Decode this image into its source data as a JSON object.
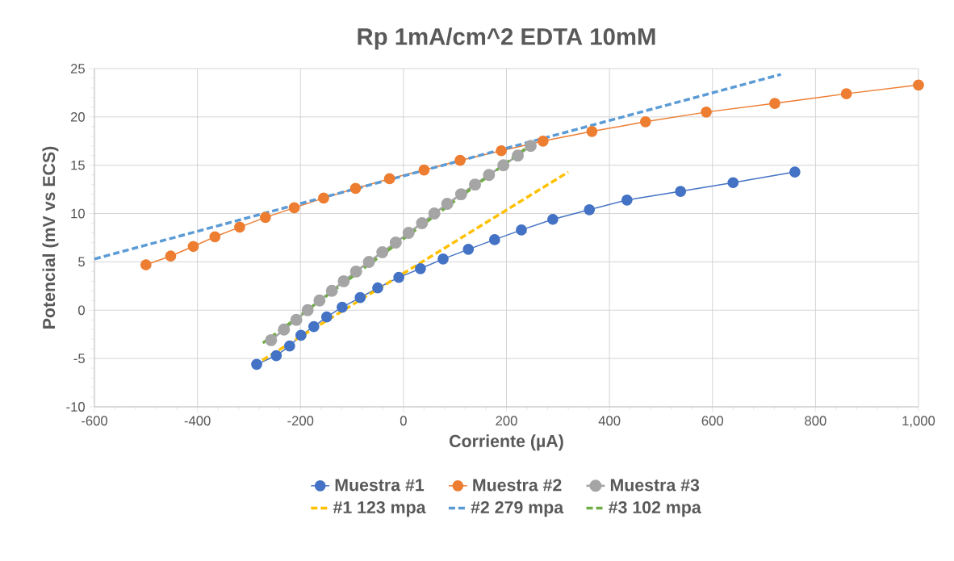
{
  "chart_data": {
    "type": "line",
    "title": "Rp 1mA/cm^2 EDTA 10mM",
    "xlabel": "Corriente (µA)",
    "ylabel": "Potencial (mV vs ECS)",
    "xlim": [
      -600,
      1000
    ],
    "xticks": [
      -600,
      -400,
      -200,
      0,
      200,
      400,
      600,
      800,
      {
        "value": 1000,
        "label": "1,000"
      }
    ],
    "ylim": [
      -10,
      25
    ],
    "yticks": [
      -10,
      -5,
      0,
      5,
      10,
      15,
      20,
      25
    ],
    "grid": true,
    "legend": "bottom",
    "series": [
      {
        "name": "Muestra #1",
        "color": "#4472c4",
        "marker": "circle",
        "line_style": "solid",
        "x": [
          -285,
          -247,
          -221,
          -199,
          -174,
          -149,
          -119,
          -84,
          -50,
          -9,
          33,
          77,
          126,
          177,
          229,
          290,
          361,
          434,
          538,
          640,
          760
        ],
        "values": [
          -5.6,
          -4.7,
          -3.7,
          -2.6,
          -1.7,
          -0.7,
          0.3,
          1.3,
          2.3,
          3.4,
          4.3,
          5.3,
          6.3,
          7.3,
          8.3,
          9.4,
          10.4,
          11.4,
          12.3,
          13.2,
          14.3
        ]
      },
      {
        "name": "Muestra #2",
        "color": "#ed7d31",
        "marker": "circle",
        "line_style": "solid",
        "x": [
          -500,
          -452,
          -408,
          -366,
          -318,
          -268,
          -212,
          -155,
          -93,
          -27,
          40,
          110,
          190,
          271,
          366,
          470,
          588,
          721,
          860,
          1000
        ],
        "values": [
          4.7,
          5.6,
          6.6,
          7.6,
          8.6,
          9.6,
          10.6,
          11.6,
          12.6,
          13.6,
          14.5,
          15.5,
          16.5,
          17.5,
          18.5,
          19.5,
          20.5,
          21.4,
          22.4,
          23.3
        ]
      },
      {
        "name": "Muestra #3",
        "color": "#a5a5a5",
        "marker": "circle",
        "line_style": "solid",
        "x": [
          -257,
          -232,
          -208,
          -186,
          -163,
          -139,
          -116,
          -92,
          -67,
          -41,
          -15,
          10,
          36,
          60,
          85,
          112,
          139,
          166,
          194,
          222,
          247
        ],
        "values": [
          -3.1,
          -2,
          -1,
          0,
          1,
          2,
          3,
          4,
          5,
          6,
          7,
          8,
          9,
          10,
          11,
          12,
          13,
          14,
          15,
          16,
          17
        ]
      },
      {
        "name": "#1 123 mpa",
        "color": "#ffc000",
        "marker": "none",
        "line_style": "dashed",
        "x": [
          -290,
          320
        ],
        "values": [
          -5.7,
          14.3
        ]
      },
      {
        "name": "#2 279 mpa",
        "color": "#5b9bd5",
        "marker": "none",
        "line_style": "dashed",
        "x": [
          -600,
          733
        ],
        "values": [
          5.3,
          24.4
        ]
      },
      {
        "name": "#3 102 mpa",
        "color": "#70ad47",
        "marker": "none",
        "line_style": "dashed",
        "x": [
          -273,
          244
        ],
        "values": [
          -3.4,
          17.0
        ]
      }
    ]
  }
}
